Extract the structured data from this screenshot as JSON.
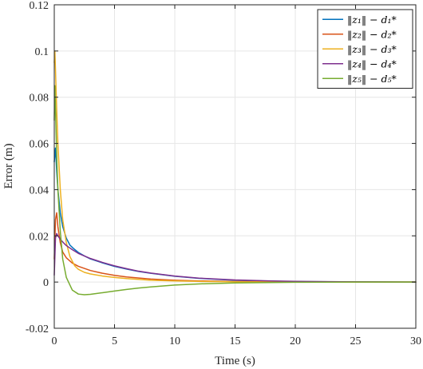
{
  "chart_data": {
    "type": "line",
    "title": "",
    "xlabel": "Time (s)",
    "ylabel": "Error (m)",
    "xlim": [
      0,
      30
    ],
    "ylim": [
      -0.02,
      0.12
    ],
    "xticks": [
      "0",
      "5",
      "10",
      "15",
      "20",
      "25",
      "30"
    ],
    "yticks": [
      "-0.02",
      "0",
      "0.02",
      "0.04",
      "0.06",
      "0.08",
      "0.1",
      "0.12"
    ],
    "grid": true,
    "legend_position": "top-right",
    "series": [
      {
        "name": "‖z₁‖ − d₁*",
        "color": "#0072BD",
        "x": [
          0,
          0.1,
          0.2,
          0.3,
          0.5,
          0.7,
          1.0,
          1.3,
          1.6,
          2.0,
          2.5,
          3,
          4,
          5,
          6,
          7,
          8,
          10,
          12,
          15,
          18,
          20,
          25,
          30
        ],
        "y": [
          0.052,
          0.058,
          0.048,
          0.04,
          0.03,
          0.024,
          0.019,
          0.016,
          0.0145,
          0.0128,
          0.0113,
          0.01,
          0.0083,
          0.0068,
          0.0056,
          0.0046,
          0.0038,
          0.0025,
          0.0016,
          0.0008,
          0.0004,
          0.0002,
          0.0001,
          0.0
        ]
      },
      {
        "name": "‖z₂‖ − d₂*",
        "color": "#D95319",
        "x": [
          0,
          0.1,
          0.2,
          0.3,
          0.5,
          0.7,
          1.0,
          1.5,
          2.0,
          3,
          4,
          5,
          6,
          8,
          10,
          12,
          15,
          20,
          25,
          30
        ],
        "y": [
          0.01,
          0.027,
          0.03,
          0.024,
          0.017,
          0.013,
          0.0105,
          0.0082,
          0.0068,
          0.005,
          0.0038,
          0.0029,
          0.0022,
          0.0013,
          0.0008,
          0.0005,
          0.0002,
          0.0001,
          0.0,
          0.0
        ]
      },
      {
        "name": "‖z₃‖ − d₃*",
        "color": "#EDB120",
        "x": [
          0,
          0.05,
          0.1,
          0.2,
          0.3,
          0.5,
          0.7,
          1.0,
          1.3,
          1.7,
          2.0,
          2.5,
          3,
          4,
          5,
          6,
          8,
          10,
          12,
          15,
          20,
          25,
          30
        ],
        "y": [
          0.095,
          0.1,
          0.092,
          0.075,
          0.06,
          0.04,
          0.027,
          0.017,
          0.011,
          0.007,
          0.0055,
          0.0042,
          0.0035,
          0.0026,
          0.002,
          0.0015,
          0.0008,
          0.0005,
          0.0003,
          0.0001,
          0.0,
          0.0,
          0.0
        ]
      },
      {
        "name": "‖z₄‖ − d₄*",
        "color": "#7E2F8E",
        "x": [
          0,
          0.1,
          0.2,
          0.3,
          0.5,
          0.8,
          1.0,
          1.5,
          2.0,
          3,
          4,
          5,
          6,
          7,
          8,
          10,
          12,
          15,
          18,
          20,
          25,
          30
        ],
        "y": [
          0.003,
          0.019,
          0.021,
          0.02,
          0.0185,
          0.0168,
          0.0158,
          0.014,
          0.0124,
          0.0102,
          0.0085,
          0.007,
          0.0058,
          0.0047,
          0.0039,
          0.0026,
          0.0017,
          0.0009,
          0.0005,
          0.0003,
          0.0001,
          0.0
        ]
      },
      {
        "name": "‖z₅‖ − d₅*",
        "color": "#77AC30",
        "x": [
          0,
          0.05,
          0.1,
          0.2,
          0.3,
          0.5,
          0.7,
          1.0,
          1.5,
          2.0,
          2.5,
          3,
          4,
          5,
          6,
          7,
          8,
          10,
          12,
          15,
          20,
          25,
          30
        ],
        "y": [
          0.07,
          0.085,
          0.075,
          0.055,
          0.04,
          0.022,
          0.01,
          0.002,
          -0.0035,
          -0.0052,
          -0.0055,
          -0.0053,
          -0.0046,
          -0.0039,
          -0.0032,
          -0.0026,
          -0.0021,
          -0.0013,
          -0.0008,
          -0.0004,
          -0.0001,
          0.0,
          0.0
        ]
      }
    ]
  }
}
